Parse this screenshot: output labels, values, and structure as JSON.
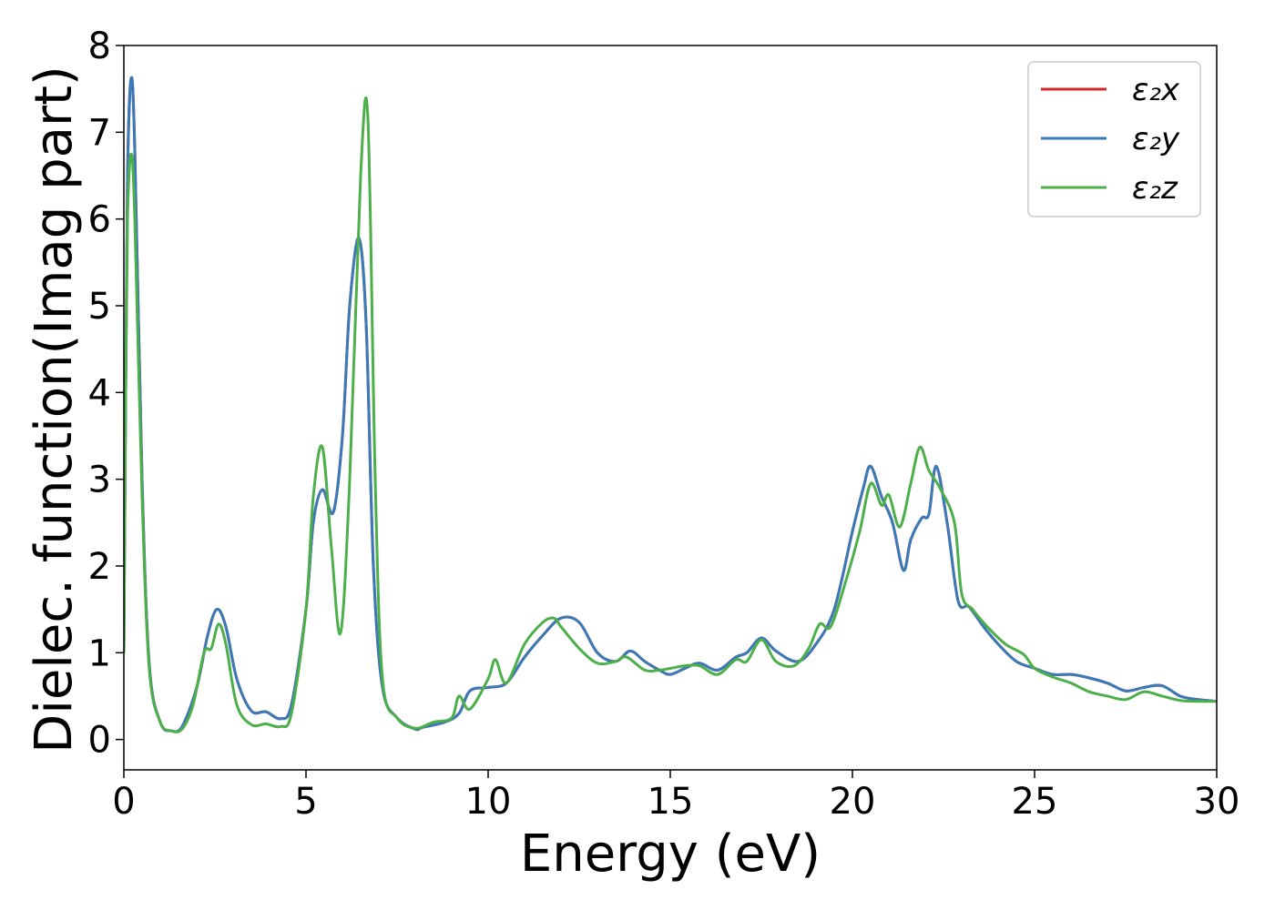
{
  "chart_data": {
    "type": "line",
    "title": "",
    "xlabel": "Energy (eV)",
    "ylabel": "Dielec. function(Imag part)",
    "xlim": [
      0,
      30
    ],
    "ylim": [
      -0.35,
      8.0
    ],
    "x_ticks": [
      "0",
      "5",
      "10",
      "15",
      "20",
      "25",
      "30"
    ],
    "y_ticks": [
      "0",
      "1",
      "2",
      "3",
      "4",
      "5",
      "6",
      "7",
      "8"
    ],
    "grid": false,
    "legend_position": "top-right",
    "series": [
      {
        "name": "ε₂x",
        "color": "#d62728",
        "x": [
          0,
          0.05,
          0.1,
          0.2,
          0.3,
          0.5,
          0.7,
          1.0,
          1.3,
          1.6,
          2.0,
          2.3,
          2.55,
          2.8,
          3.1,
          3.5,
          3.9,
          4.3,
          4.6,
          5.0,
          5.2,
          5.45,
          5.75,
          6.0,
          6.2,
          6.45,
          6.65,
          6.85,
          7.1,
          7.5,
          8.0,
          8.2,
          8.8,
          9.2,
          9.5,
          10.0,
          10.5,
          11.0,
          11.5,
          12.0,
          12.5,
          13.0,
          13.5,
          13.9,
          14.3,
          14.7,
          15.0,
          15.4,
          15.8,
          16.3,
          16.8,
          17.1,
          17.5,
          17.9,
          18.5,
          19.0,
          19.5,
          20.0,
          20.3,
          20.5,
          20.8,
          21.1,
          21.4,
          21.6,
          21.9,
          22.1,
          22.3,
          22.6,
          22.9,
          23.2,
          23.6,
          24.0,
          24.5,
          25.0,
          25.5,
          26.0,
          26.4,
          27.0,
          27.5,
          28.0,
          28.5,
          29.0,
          29.5,
          30.0
        ],
        "values": [
          1.0,
          4.0,
          6.5,
          7.62,
          6.8,
          3.0,
          0.85,
          0.2,
          0.1,
          0.15,
          0.6,
          1.2,
          1.5,
          1.3,
          0.7,
          0.33,
          0.32,
          0.24,
          0.4,
          1.5,
          2.5,
          2.88,
          2.62,
          3.5,
          5.0,
          5.78,
          4.8,
          2.0,
          0.6,
          0.25,
          0.12,
          0.14,
          0.2,
          0.3,
          0.56,
          0.6,
          0.65,
          0.95,
          1.2,
          1.4,
          1.35,
          1.0,
          0.9,
          1.02,
          0.9,
          0.8,
          0.75,
          0.82,
          0.88,
          0.8,
          0.95,
          1.0,
          1.17,
          1.02,
          0.9,
          1.1,
          1.5,
          2.4,
          2.9,
          3.15,
          2.8,
          2.5,
          1.95,
          2.3,
          2.55,
          2.6,
          3.15,
          2.5,
          1.6,
          1.53,
          1.3,
          1.1,
          0.9,
          0.82,
          0.75,
          0.75,
          0.72,
          0.65,
          0.56,
          0.6,
          0.62,
          0.5,
          0.46,
          0.44
        ]
      },
      {
        "name": "ε₂y",
        "color": "#3a7ab8",
        "x": [
          0,
          0.05,
          0.1,
          0.2,
          0.3,
          0.5,
          0.7,
          1.0,
          1.3,
          1.6,
          2.0,
          2.3,
          2.55,
          2.8,
          3.1,
          3.5,
          3.9,
          4.3,
          4.6,
          5.0,
          5.2,
          5.45,
          5.75,
          6.0,
          6.2,
          6.45,
          6.65,
          6.85,
          7.1,
          7.5,
          8.0,
          8.2,
          8.8,
          9.2,
          9.5,
          10.0,
          10.5,
          11.0,
          11.5,
          12.0,
          12.5,
          13.0,
          13.5,
          13.9,
          14.3,
          14.7,
          15.0,
          15.4,
          15.8,
          16.3,
          16.8,
          17.1,
          17.5,
          17.9,
          18.5,
          19.0,
          19.5,
          20.0,
          20.3,
          20.5,
          20.8,
          21.1,
          21.4,
          21.6,
          21.9,
          22.1,
          22.3,
          22.6,
          22.9,
          23.2,
          23.6,
          24.0,
          24.5,
          25.0,
          25.5,
          26.0,
          26.4,
          27.0,
          27.5,
          28.0,
          28.5,
          29.0,
          29.5,
          30.0
        ],
        "values": [
          1.0,
          4.0,
          6.5,
          7.62,
          6.8,
          3.0,
          0.85,
          0.2,
          0.1,
          0.15,
          0.6,
          1.2,
          1.5,
          1.3,
          0.7,
          0.33,
          0.32,
          0.24,
          0.4,
          1.5,
          2.5,
          2.88,
          2.62,
          3.5,
          5.0,
          5.78,
          4.8,
          2.0,
          0.6,
          0.25,
          0.12,
          0.14,
          0.2,
          0.3,
          0.56,
          0.6,
          0.65,
          0.95,
          1.2,
          1.4,
          1.35,
          1.0,
          0.9,
          1.02,
          0.9,
          0.8,
          0.75,
          0.82,
          0.88,
          0.8,
          0.95,
          1.0,
          1.17,
          1.02,
          0.9,
          1.1,
          1.5,
          2.4,
          2.9,
          3.15,
          2.8,
          2.5,
          1.95,
          2.3,
          2.55,
          2.6,
          3.15,
          2.5,
          1.6,
          1.53,
          1.3,
          1.1,
          0.9,
          0.82,
          0.75,
          0.75,
          0.72,
          0.65,
          0.56,
          0.6,
          0.62,
          0.5,
          0.46,
          0.44
        ]
      },
      {
        "name": "ε₂z",
        "color": "#4daf4a",
        "x": [
          0,
          0.05,
          0.1,
          0.2,
          0.3,
          0.5,
          0.7,
          1.0,
          1.3,
          1.6,
          1.9,
          2.2,
          2.4,
          2.6,
          2.8,
          3.1,
          3.5,
          3.9,
          4.3,
          4.6,
          5.0,
          5.2,
          5.45,
          5.7,
          5.95,
          6.2,
          6.5,
          6.7,
          6.9,
          7.1,
          7.5,
          8.0,
          8.5,
          9.0,
          9.2,
          9.5,
          10.0,
          10.2,
          10.5,
          11.0,
          11.5,
          11.8,
          12.0,
          12.5,
          13.0,
          13.5,
          13.8,
          14.3,
          14.7,
          15.0,
          15.4,
          15.8,
          16.3,
          16.8,
          17.1,
          17.5,
          17.9,
          18.4,
          18.8,
          19.1,
          19.4,
          19.8,
          20.2,
          20.5,
          20.8,
          21.0,
          21.3,
          21.6,
          21.85,
          22.1,
          22.4,
          22.8,
          23.0,
          23.3,
          23.7,
          24.2,
          24.7,
          25.0,
          25.5,
          26.0,
          26.5,
          27.0,
          27.5,
          28.0,
          28.5,
          29.0,
          29.5,
          30.0
        ],
        "values": [
          1.0,
          4.0,
          6.0,
          6.75,
          6.0,
          2.8,
          0.8,
          0.2,
          0.1,
          0.12,
          0.4,
          1.0,
          1.05,
          1.33,
          1.1,
          0.4,
          0.17,
          0.18,
          0.15,
          0.3,
          1.5,
          2.8,
          3.37,
          2.2,
          1.23,
          3.0,
          6.5,
          7.15,
          3.0,
          0.7,
          0.25,
          0.13,
          0.2,
          0.25,
          0.5,
          0.35,
          0.7,
          0.92,
          0.65,
          1.1,
          1.35,
          1.4,
          1.3,
          1.05,
          0.88,
          0.9,
          0.95,
          0.8,
          0.8,
          0.82,
          0.85,
          0.85,
          0.75,
          0.92,
          0.9,
          1.15,
          0.9,
          0.85,
          1.05,
          1.33,
          1.3,
          1.8,
          2.4,
          2.95,
          2.7,
          2.82,
          2.45,
          2.95,
          3.37,
          3.1,
          2.9,
          2.5,
          1.68,
          1.5,
          1.3,
          1.1,
          0.98,
          0.82,
          0.72,
          0.65,
          0.55,
          0.5,
          0.46,
          0.55,
          0.5,
          0.45,
          0.44,
          0.44
        ]
      }
    ]
  }
}
